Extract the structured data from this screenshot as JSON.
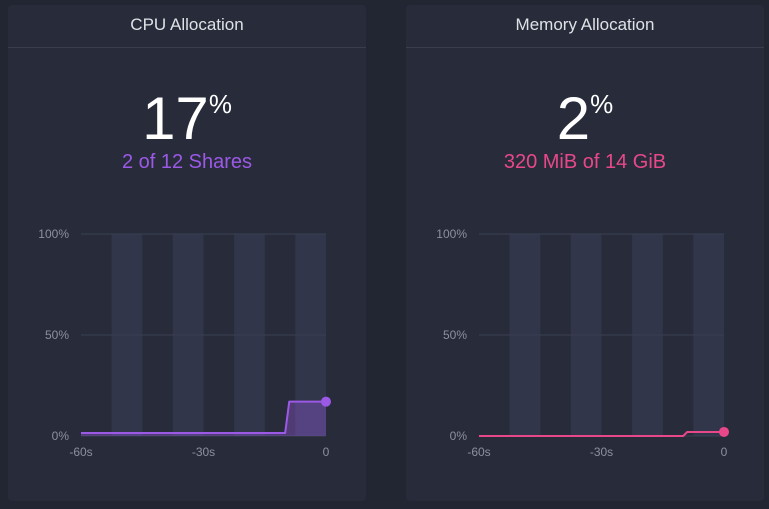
{
  "panels": {
    "cpu": {
      "title": "CPU Allocation",
      "percent": "17",
      "percent_sign": "%",
      "detail": "2 of 12 Shares",
      "accent": "#9b59e6"
    },
    "memory": {
      "title": "Memory Allocation",
      "percent": "2",
      "percent_sign": "%",
      "detail": "320 MiB of 14 GiB",
      "accent": "#e8488a"
    }
  },
  "chart_data": [
    {
      "type": "area",
      "name": "cpu",
      "x": [
        -60,
        -10,
        -9,
        0
      ],
      "values": [
        1.5,
        1.5,
        17,
        17
      ],
      "xticks": [
        "-60s",
        "-30s",
        "0"
      ],
      "yticks": [
        "100%",
        "50%",
        "0%"
      ],
      "xlim": [
        -60,
        0
      ],
      "ylim": [
        0,
        100
      ],
      "color": "#9b59e6",
      "fill": true
    },
    {
      "type": "line",
      "name": "memory",
      "x": [
        -60,
        -10,
        -9,
        0
      ],
      "values": [
        0,
        0,
        2,
        2
      ],
      "xticks": [
        "-60s",
        "-30s",
        "0"
      ],
      "yticks": [
        "100%",
        "50%",
        "0%"
      ],
      "xlim": [
        -60,
        0
      ],
      "ylim": [
        0,
        100
      ],
      "color": "#e8488a",
      "fill": false
    }
  ]
}
